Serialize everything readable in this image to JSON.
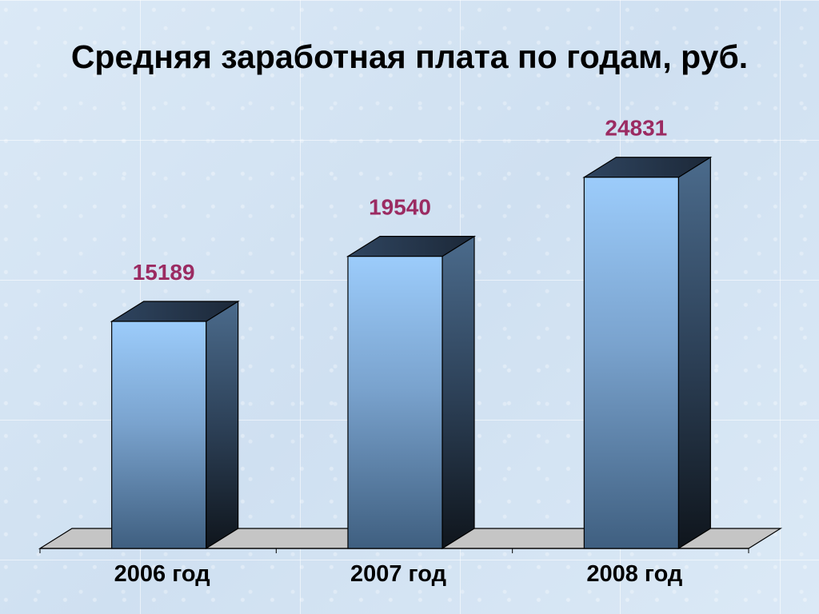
{
  "title": "Средняя заработная плата по годам, руб.",
  "chart_data": {
    "type": "bar",
    "title": "Средняя заработная плата по годам, руб.",
    "categories": [
      "2006 год",
      "2007 год",
      "2008 год"
    ],
    "series": [
      {
        "values": [
          15189,
          19540,
          24831
        ]
      }
    ],
    "ylim": [
      0,
      30000
    ],
    "grid": false,
    "legend": "none",
    "three_d": true,
    "colors": {
      "bar_front_top": "#9cccfb",
      "bar_front_bottom": "#4a6c8e",
      "bar_side_top": "#4b6b8c",
      "bar_side_bottom": "#111820",
      "label": "#9b2b62",
      "floor": "#c5c5c5"
    }
  }
}
